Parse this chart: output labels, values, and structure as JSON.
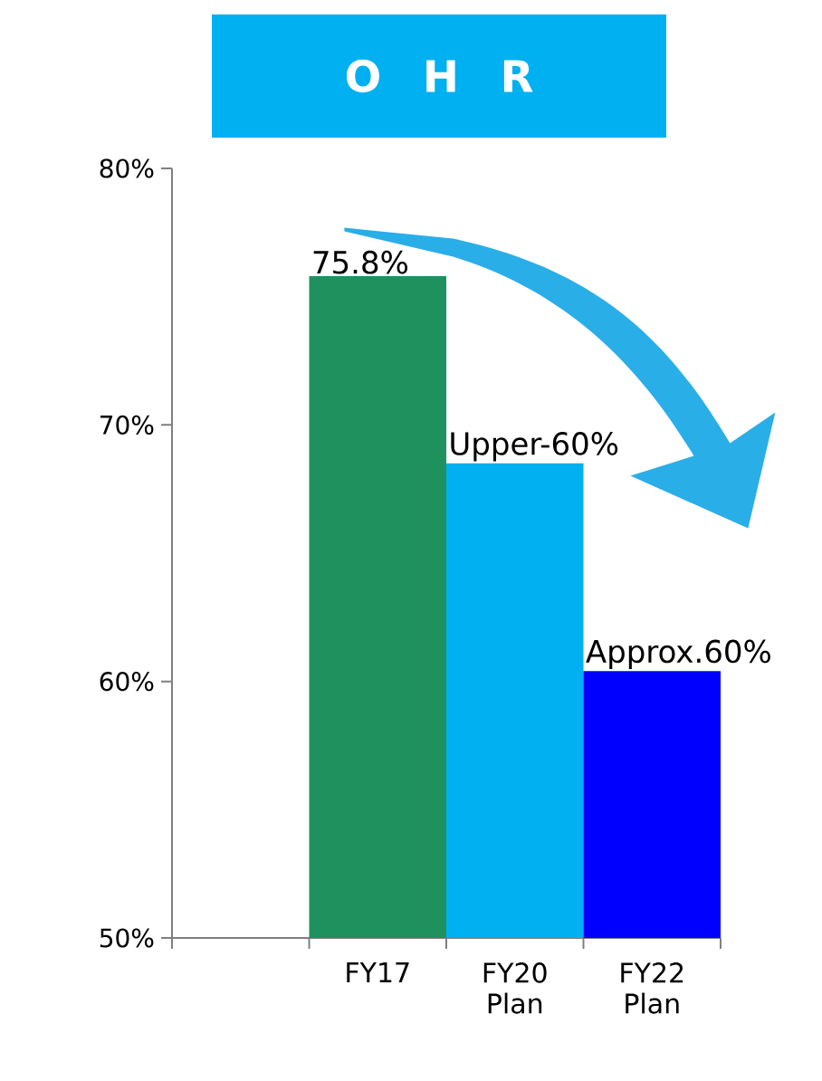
{
  "chart_data": {
    "type": "bar",
    "title": "O H R",
    "categories": [
      null,
      "FY17",
      "FY20 Plan",
      "FY22 Plan"
    ],
    "values": [
      null,
      75.8,
      68.5,
      60.4
    ],
    "colors": [
      "#1f915e",
      "#1f915e",
      "#00b0f0",
      "#0000ff"
    ],
    "value_labels": [
      null,
      "75.8%",
      "Upper-60%",
      "Approx.60%"
    ],
    "ylim": [
      50,
      80
    ],
    "yticks": [
      {
        "value": 50,
        "label": "50%"
      },
      {
        "value": 60,
        "label": "60%"
      },
      {
        "value": 70,
        "label": "70%"
      },
      {
        "value": 80,
        "label": "80%"
      }
    ],
    "grid": false
  }
}
